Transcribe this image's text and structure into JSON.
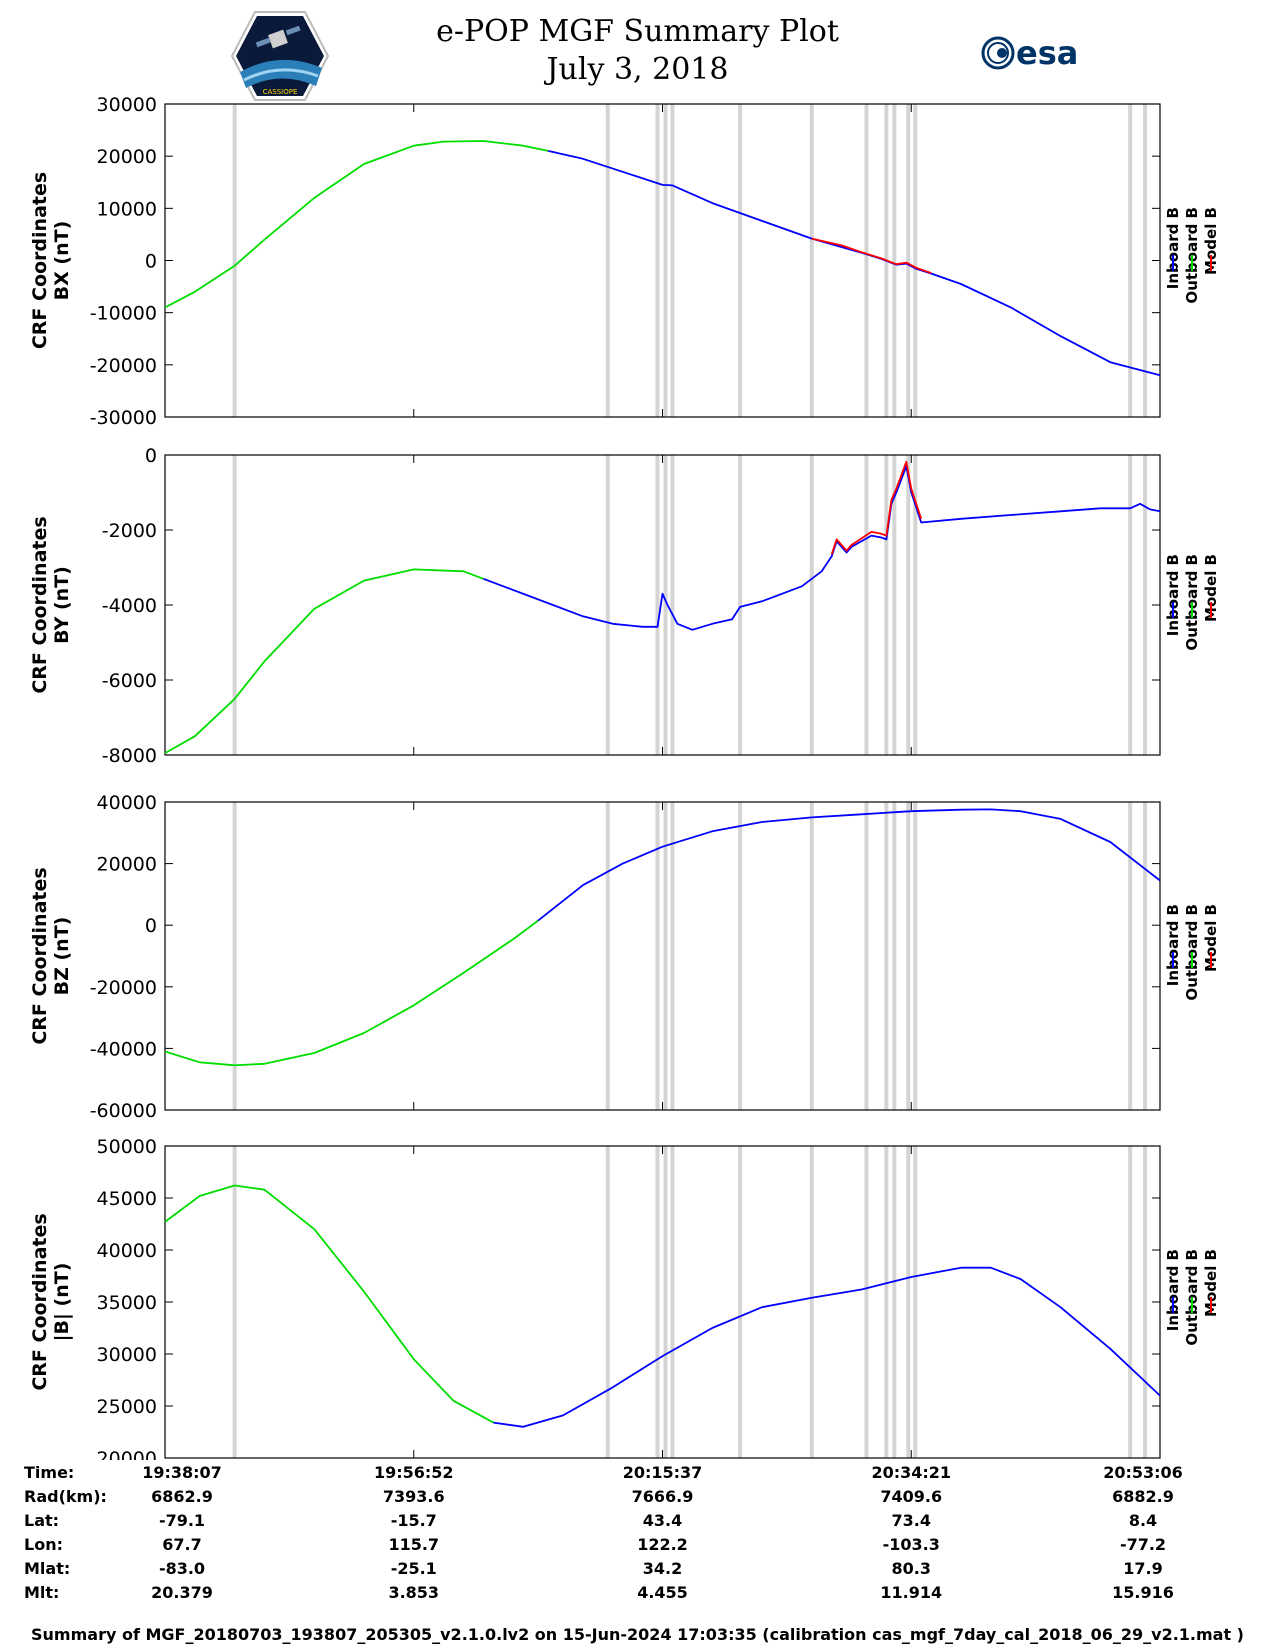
{
  "header": {
    "title_line1": "e-POP MGF Summary Plot",
    "title_line2": "July 3, 2018",
    "logo_left_text": "CASSIOPE",
    "logo_right_text": "esa"
  },
  "colors": {
    "inboard": "#0000ff",
    "outboard": "#00dd00",
    "model": "#ff0000",
    "shade": "#d4d4d4"
  },
  "chart_data": [
    {
      "type": "line",
      "ylabel": [
        "CRF Coordinates",
        "BX (nT)"
      ],
      "ylim": [
        -30000,
        30000
      ],
      "yticks": [
        30000,
        20000,
        10000,
        0,
        -10000,
        -20000,
        -30000
      ],
      "legend": [
        "Inboard B",
        "Outboard B",
        "Model B"
      ],
      "series": [
        {
          "name": "Outboard B",
          "x": [
            0.0,
            0.03,
            0.07,
            0.1,
            0.15,
            0.2,
            0.25,
            0.28,
            0.32,
            0.36,
            0.385
          ],
          "y": [
            -9000,
            -6000,
            -1000,
            4000,
            12000,
            18500,
            22000,
            22800,
            22900,
            22000,
            21000
          ]
        },
        {
          "name": "Inboard B",
          "x": [
            0.385,
            0.42,
            0.46,
            0.5,
            0.51,
            0.55,
            0.6,
            0.65,
            0.7,
            0.72,
            0.735,
            0.745,
            0.755,
            0.77,
            0.8,
            0.85,
            0.9,
            0.95,
            1.0
          ],
          "y": [
            21000,
            19500,
            17000,
            14500,
            14400,
            11000,
            7600,
            4200,
            1500,
            300,
            -800,
            -600,
            -1600,
            -2500,
            -4500,
            -9000,
            -14500,
            -19500,
            -22000
          ]
        },
        {
          "name": "Model B",
          "x": [
            0.65,
            0.68,
            0.7,
            0.72,
            0.735,
            0.745,
            0.755,
            0.77
          ],
          "y": [
            4200,
            2900,
            1600,
            400,
            -700,
            -400,
            -1400,
            -2400
          ]
        }
      ]
    },
    {
      "type": "line",
      "ylabel": [
        "CRF Coordinates",
        "BY (nT)"
      ],
      "ylim": [
        -8000,
        0
      ],
      "yticks": [
        0,
        -2000,
        -4000,
        -6000,
        -8000
      ],
      "legend": [
        "Inboard B",
        "Outboard B",
        "Model B"
      ],
      "series": [
        {
          "name": "Outboard B",
          "x": [
            0.0,
            0.03,
            0.07,
            0.1,
            0.15,
            0.2,
            0.25,
            0.3,
            0.32
          ],
          "y": [
            -7950,
            -7500,
            -6500,
            -5500,
            -4100,
            -3350,
            -3050,
            -3100,
            -3300
          ]
        },
        {
          "name": "Inboard B",
          "x": [
            0.32,
            0.37,
            0.42,
            0.45,
            0.48,
            0.495,
            0.5,
            0.505,
            0.515,
            0.53,
            0.55,
            0.57,
            0.578,
            0.6,
            0.62,
            0.64,
            0.66,
            0.67,
            0.675,
            0.685,
            0.69,
            0.71,
            0.72,
            0.725,
            0.73,
            0.735,
            0.745,
            0.75,
            0.76,
            0.8,
            0.85,
            0.9,
            0.94,
            0.97,
            0.98,
            0.99,
            1.0
          ],
          "y": [
            -3300,
            -3800,
            -4300,
            -4500,
            -4580,
            -4580,
            -3700,
            -4000,
            -4500,
            -4660,
            -4500,
            -4380,
            -4050,
            -3900,
            -3700,
            -3500,
            -3100,
            -2700,
            -2300,
            -2600,
            -2450,
            -2150,
            -2200,
            -2250,
            -1300,
            -1000,
            -300,
            -1000,
            -1800,
            -1700,
            -1600,
            -1500,
            -1420,
            -1420,
            -1300,
            -1450,
            -1500
          ]
        },
        {
          "name": "Model B",
          "x": [
            0.67,
            0.675,
            0.685,
            0.69,
            0.71,
            0.72,
            0.725,
            0.73,
            0.735,
            0.745,
            0.75,
            0.76
          ],
          "y": [
            -2650,
            -2250,
            -2550,
            -2400,
            -2050,
            -2100,
            -2150,
            -1200,
            -900,
            -180,
            -900,
            -1700
          ]
        }
      ]
    },
    {
      "type": "line",
      "ylabel": [
        "CRF Coordinates",
        "BZ (nT)"
      ],
      "ylim": [
        -60000,
        40000
      ],
      "yticks": [
        40000,
        20000,
        0,
        -20000,
        -40000,
        -60000
      ],
      "legend": [
        "Inboard B",
        "Outboard B",
        "Model B"
      ],
      "series": [
        {
          "name": "Outboard B",
          "x": [
            0.0,
            0.035,
            0.07,
            0.1,
            0.15,
            0.2,
            0.25,
            0.3,
            0.35,
            0.375
          ],
          "y": [
            -41000,
            -44500,
            -45500,
            -45000,
            -41500,
            -35000,
            -26000,
            -15500,
            -4500,
            1500
          ]
        },
        {
          "name": "Inboard B",
          "x": [
            0.375,
            0.42,
            0.46,
            0.5,
            0.55,
            0.6,
            0.65,
            0.7,
            0.75,
            0.8,
            0.83,
            0.86,
            0.9,
            0.95,
            1.0
          ],
          "y": [
            1500,
            13000,
            20000,
            25500,
            30500,
            33500,
            35000,
            36000,
            37000,
            37500,
            37600,
            37000,
            34500,
            27000,
            14500
          ]
        }
      ]
    },
    {
      "type": "line",
      "ylabel": [
        "CRF Coordinates",
        "|B| (nT)"
      ],
      "ylim": [
        20000,
        50000
      ],
      "yticks": [
        50000,
        45000,
        40000,
        35000,
        30000,
        25000,
        20000
      ],
      "legend": [
        "Inboard B",
        "Outboard B",
        "Model B"
      ],
      "series": [
        {
          "name": "Outboard B",
          "x": [
            0.0,
            0.035,
            0.07,
            0.1,
            0.15,
            0.2,
            0.25,
            0.29,
            0.33
          ],
          "y": [
            42700,
            45200,
            46200,
            45800,
            42000,
            36000,
            29500,
            25500,
            23400
          ]
        },
        {
          "name": "Inboard B",
          "x": [
            0.33,
            0.36,
            0.4,
            0.45,
            0.5,
            0.55,
            0.6,
            0.65,
            0.7,
            0.75,
            0.8,
            0.83,
            0.86,
            0.9,
            0.95,
            1.0
          ],
          "y": [
            23400,
            23000,
            24100,
            26800,
            29800,
            32500,
            34500,
            35400,
            36200,
            37400,
            38300,
            38300,
            37200,
            34500,
            30500,
            26000
          ]
        }
      ]
    }
  ],
  "shaded_times": [
    0.07,
    0.445,
    0.495,
    0.503,
    0.51,
    0.578,
    0.65,
    0.705,
    0.725,
    0.733,
    0.747,
    0.754,
    0.97,
    0.985
  ],
  "time_axis": {
    "labels": [
      "Time:",
      "Rad(km):",
      "Lat:",
      "Lon:",
      "Mlat:",
      "Mlt:"
    ],
    "columns": [
      {
        "pos": 0.0,
        "values": [
          "19:38:07",
          "6862.9",
          "-79.1",
          "67.7",
          "-83.0",
          "20.379"
        ]
      },
      {
        "pos": 0.25,
        "values": [
          "19:56:52",
          "7393.6",
          "-15.7",
          "115.7",
          "-25.1",
          "3.853"
        ]
      },
      {
        "pos": 0.5,
        "values": [
          "20:15:37",
          "7666.9",
          "43.4",
          "122.2",
          "34.2",
          "4.455"
        ]
      },
      {
        "pos": 0.75,
        "values": [
          "20:34:21",
          "7409.6",
          "73.4",
          "-103.3",
          "80.3",
          "11.914"
        ]
      },
      {
        "pos": 1.0,
        "values": [
          "20:53:06",
          "6882.9",
          "8.4",
          "-77.2",
          "17.9",
          "15.916"
        ]
      }
    ]
  },
  "footer": "Summary of MGF_20180703_193807_205305_v2.1.0.lv2 on 15-Jun-2024 17:03:35 (calibration cas_mgf_7day_cal_2018_06_29_v2.1.mat )"
}
